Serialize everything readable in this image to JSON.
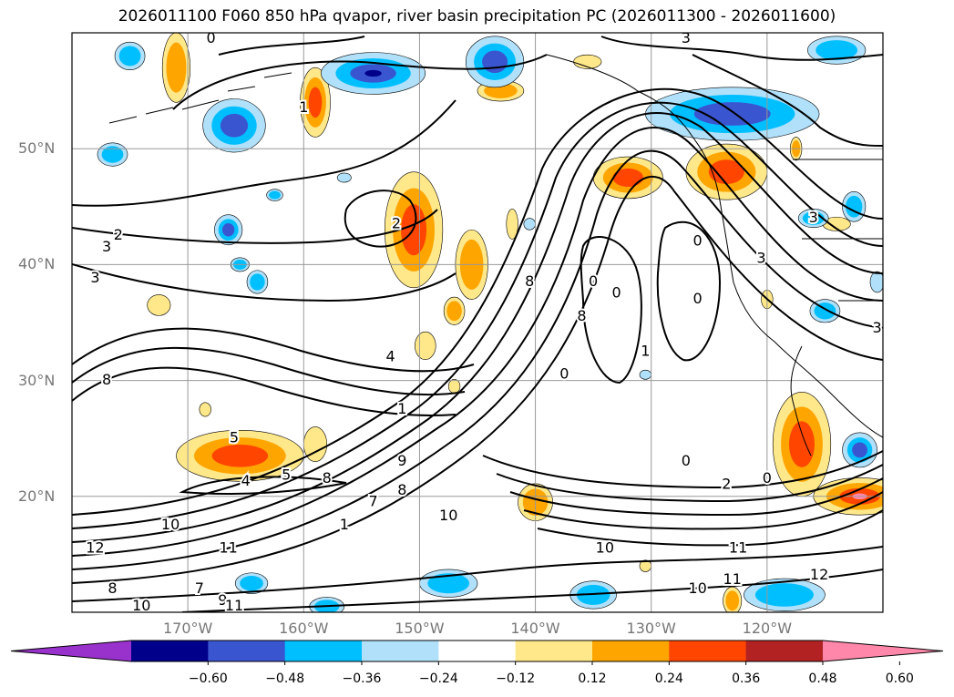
{
  "title": "2026011100 F060 850 hPa qvapor, river basin precipitation PC (2026011300 - 2026011600)",
  "map": {
    "projection": "PlateCarree",
    "lon_range": [
      -180,
      -110
    ],
    "lat_range": [
      10,
      60
    ],
    "lat_labels": [
      "50°N",
      "40°N",
      "30°N",
      "20°N"
    ],
    "lat_values": [
      50,
      40,
      30,
      20
    ],
    "lon_labels": [
      "170°W",
      "160°W",
      "150°W",
      "140°W",
      "130°W",
      "120°W"
    ],
    "lon_values": [
      -170,
      -160,
      -150,
      -140,
      -130,
      -120
    ],
    "gridlines": true,
    "contour_color": "#000000",
    "contour_labels": [
      {
        "text": "0",
        "lon": -168,
        "lat": 59.5
      },
      {
        "text": "3",
        "lon": -127,
        "lat": 59.5
      },
      {
        "text": "1",
        "lon": -160,
        "lat": 53.5
      },
      {
        "text": "2",
        "lon": -176,
        "lat": 42.5
      },
      {
        "text": "3",
        "lon": -177,
        "lat": 41.5
      },
      {
        "text": "3",
        "lon": -178,
        "lat": 38.8
      },
      {
        "text": "2",
        "lon": -152,
        "lat": 43.5
      },
      {
        "text": "4",
        "lon": -152.5,
        "lat": 32
      },
      {
        "text": "8",
        "lon": -177,
        "lat": 30
      },
      {
        "text": "5",
        "lon": -166,
        "lat": 25
      },
      {
        "text": "5",
        "lon": -161.5,
        "lat": 21.8
      },
      {
        "text": "4",
        "lon": -165,
        "lat": 21.3
      },
      {
        "text": "8",
        "lon": -140.5,
        "lat": 38.5
      },
      {
        "text": "8",
        "lon": -136,
        "lat": 35.5
      },
      {
        "text": "0",
        "lon": -135,
        "lat": 38.5
      },
      {
        "text": "0",
        "lon": -133,
        "lat": 37.5
      },
      {
        "text": "1",
        "lon": -130.5,
        "lat": 32.5
      },
      {
        "text": "0",
        "lon": -126,
        "lat": 42
      },
      {
        "text": "0",
        "lon": -126,
        "lat": 37
      },
      {
        "text": "3",
        "lon": -120.5,
        "lat": 40.5
      },
      {
        "text": "3",
        "lon": -116,
        "lat": 44
      },
      {
        "text": "3",
        "lon": -110.5,
        "lat": 34.5
      },
      {
        "text": "0",
        "lon": -137.5,
        "lat": 30.5
      },
      {
        "text": "1",
        "lon": -151.5,
        "lat": 27.5
      },
      {
        "text": "9",
        "lon": -151.5,
        "lat": 23
      },
      {
        "text": "8",
        "lon": -151.5,
        "lat": 20.5
      },
      {
        "text": "7",
        "lon": -154,
        "lat": 19.5
      },
      {
        "text": "8",
        "lon": -158,
        "lat": 21.5
      },
      {
        "text": "1",
        "lon": -156.5,
        "lat": 17.5
      },
      {
        "text": "10",
        "lon": -147.5,
        "lat": 18.3
      },
      {
        "text": "10",
        "lon": -171.5,
        "lat": 17.5
      },
      {
        "text": "12",
        "lon": -178,
        "lat": 15.5
      },
      {
        "text": "11",
        "lon": -166.5,
        "lat": 15.5
      },
      {
        "text": "10",
        "lon": -134,
        "lat": 15.5
      },
      {
        "text": "11",
        "lon": -122.5,
        "lat": 15.5
      },
      {
        "text": "11",
        "lon": -123,
        "lat": 12.8
      },
      {
        "text": "10",
        "lon": -126,
        "lat": 12
      },
      {
        "text": "12",
        "lon": -115.5,
        "lat": 13.2
      },
      {
        "text": "7",
        "lon": -169,
        "lat": 12
      },
      {
        "text": "9",
        "lon": -167,
        "lat": 11
      },
      {
        "text": "11",
        "lon": -166,
        "lat": 10.5
      },
      {
        "text": "10",
        "lon": -174,
        "lat": 10.5
      },
      {
        "text": "8",
        "lon": -176.5,
        "lat": 12
      },
      {
        "text": "0",
        "lon": -127,
        "lat": 23
      },
      {
        "text": "2",
        "lon": -123.5,
        "lat": 21
      },
      {
        "text": "0",
        "lon": -120,
        "lat": 21.5
      }
    ],
    "precip_blobs": [
      {
        "lon": -171,
        "lat": 57,
        "rx": 1.2,
        "ry": 3,
        "level": 0.36
      },
      {
        "lon": -159,
        "lat": 54,
        "rx": 1.3,
        "ry": 3,
        "level": 0.48
      },
      {
        "lon": -150.5,
        "lat": 43,
        "rx": 2.5,
        "ry": 5,
        "level": 0.48
      },
      {
        "lon": -145.5,
        "lat": 40,
        "rx": 1.4,
        "ry": 3,
        "level": 0.36
      },
      {
        "lon": -147,
        "lat": 36,
        "rx": 0.9,
        "ry": 1.2,
        "level": 0.36
      },
      {
        "lon": -149.5,
        "lat": 33,
        "rx": 0.9,
        "ry": 1.2,
        "level": 0.24
      },
      {
        "lon": -142,
        "lat": 43.5,
        "rx": 0.5,
        "ry": 1.3,
        "level": 0.24
      },
      {
        "lon": -143,
        "lat": 55,
        "rx": 2,
        "ry": 0.9,
        "level": 0.36
      },
      {
        "lon": -135.5,
        "lat": 57.5,
        "rx": 1.2,
        "ry": 0.6,
        "level": 0.24
      },
      {
        "lon": -132,
        "lat": 47.5,
        "rx": 3,
        "ry": 1.8,
        "level": 0.48
      },
      {
        "lon": -123.5,
        "lat": 48,
        "rx": 3.5,
        "ry": 2.4,
        "level": 0.48
      },
      {
        "lon": -114,
        "lat": 43.5,
        "rx": 1.2,
        "ry": 0.6,
        "level": 0.24
      },
      {
        "lon": -165.5,
        "lat": 23.5,
        "rx": 5.5,
        "ry": 2.2,
        "level": 0.48
      },
      {
        "lon": -159,
        "lat": 24.5,
        "rx": 1,
        "ry": 1.5,
        "level": 0.24
      },
      {
        "lon": -172.5,
        "lat": 36.5,
        "rx": 1,
        "ry": 0.9,
        "level": 0.24
      },
      {
        "lon": -140,
        "lat": 19.5,
        "rx": 1.5,
        "ry": 1.6,
        "level": 0.36
      },
      {
        "lon": -117,
        "lat": 24.5,
        "rx": 2.5,
        "ry": 4.5,
        "level": 0.48
      },
      {
        "lon": -112,
        "lat": 20,
        "rx": 4,
        "ry": 1.6,
        "level": 0.6
      },
      {
        "lon": -123,
        "lat": 11,
        "rx": 0.8,
        "ry": 1.2,
        "level": 0.36
      },
      {
        "lon": -130.5,
        "lat": 14,
        "rx": 0.5,
        "ry": 0.5,
        "level": 0.24
      },
      {
        "lon": -147,
        "lat": 29.5,
        "rx": 0.5,
        "ry": 0.6,
        "level": 0.24
      },
      {
        "lon": -168.5,
        "lat": 27.5,
        "rx": 0.5,
        "ry": 0.6,
        "level": 0.24
      },
      {
        "lon": -120,
        "lat": 37,
        "rx": 0.5,
        "ry": 0.8,
        "level": 0.24
      },
      {
        "lon": -117.5,
        "lat": 50,
        "rx": 0.5,
        "ry": 1,
        "level": 0.36
      },
      {
        "lon": -175,
        "lat": 58,
        "rx": 1.3,
        "ry": 1.2,
        "level": -0.36
      },
      {
        "lon": -176.5,
        "lat": 49.5,
        "rx": 1.3,
        "ry": 1,
        "level": -0.36
      },
      {
        "lon": -166,
        "lat": 52,
        "rx": 2.7,
        "ry": 2.3,
        "level": -0.48
      },
      {
        "lon": -154,
        "lat": 56.5,
        "rx": 4.5,
        "ry": 1.8,
        "level": -0.6
      },
      {
        "lon": -143.5,
        "lat": 57.5,
        "rx": 2.5,
        "ry": 2.2,
        "level": -0.48
      },
      {
        "lon": -123,
        "lat": 53,
        "rx": 7.5,
        "ry": 2.3,
        "level": -0.48
      },
      {
        "lon": -114,
        "lat": 58.5,
        "rx": 2.5,
        "ry": 1.2,
        "level": -0.36
      },
      {
        "lon": -166.5,
        "lat": 43,
        "rx": 1.2,
        "ry": 1.3,
        "level": -0.48
      },
      {
        "lon": -164,
        "lat": 38.5,
        "rx": 0.9,
        "ry": 1,
        "level": -0.36
      },
      {
        "lon": -165.5,
        "lat": 40,
        "rx": 0.8,
        "ry": 0.6,
        "level": -0.36
      },
      {
        "lon": -164.5,
        "lat": 12.5,
        "rx": 1.4,
        "ry": 0.9,
        "level": -0.36
      },
      {
        "lon": -147.5,
        "lat": 12.5,
        "rx": 2.5,
        "ry": 1.2,
        "level": -0.36
      },
      {
        "lon": -135,
        "lat": 11.5,
        "rx": 2,
        "ry": 1.2,
        "level": -0.36
      },
      {
        "lon": -118.5,
        "lat": 11.5,
        "rx": 3.5,
        "ry": 1.4,
        "level": -0.36
      },
      {
        "lon": -112,
        "lat": 24,
        "rx": 1.5,
        "ry": 1.5,
        "level": -0.48
      },
      {
        "lon": -116,
        "lat": 44,
        "rx": 1.3,
        "ry": 0.8,
        "level": -0.36
      },
      {
        "lon": -112.5,
        "lat": 45,
        "rx": 1,
        "ry": 1.3,
        "level": -0.36
      },
      {
        "lon": -115,
        "lat": 36,
        "rx": 1.3,
        "ry": 1,
        "level": -0.36
      },
      {
        "lon": -110.5,
        "lat": 38.5,
        "rx": 0.6,
        "ry": 0.9,
        "level": -0.24
      },
      {
        "lon": -158,
        "lat": 10.5,
        "rx": 1.5,
        "ry": 0.8,
        "level": -0.36
      },
      {
        "lon": -156.5,
        "lat": 47.5,
        "rx": 0.6,
        "ry": 0.4,
        "level": -0.24
      },
      {
        "lon": -162.5,
        "lat": 46,
        "rx": 0.7,
        "ry": 0.5,
        "level": -0.36
      },
      {
        "lon": -130.5,
        "lat": 30.5,
        "rx": 0.5,
        "ry": 0.4,
        "level": -0.24
      },
      {
        "lon": -140.5,
        "lat": 43.5,
        "rx": 0.5,
        "ry": 0.5,
        "level": -0.24
      }
    ]
  },
  "colorbar": {
    "ticks": [
      "−0.60",
      "−0.48",
      "−0.36",
      "−0.24",
      "−0.12",
      "0.12",
      "0.24",
      "0.36",
      "0.48",
      "0.60"
    ],
    "colors": [
      "#9932cc",
      "#00008b",
      "#3a55d0",
      "#00bfff",
      "#b0e0fa",
      "#ffffff",
      "#ffe88a",
      "#ffa500",
      "#ff4500",
      "#b22222",
      "#ff88aa"
    ],
    "level_colors": {
      "-0.6": "#00008b",
      "-0.48": "#3a55d0",
      "-0.36": "#00bfff",
      "-0.24": "#b0e0fa",
      "0.24": "#ffe88a",
      "0.36": "#ffa500",
      "0.48": "#ff4500",
      "0.6": "#ff88aa"
    }
  }
}
